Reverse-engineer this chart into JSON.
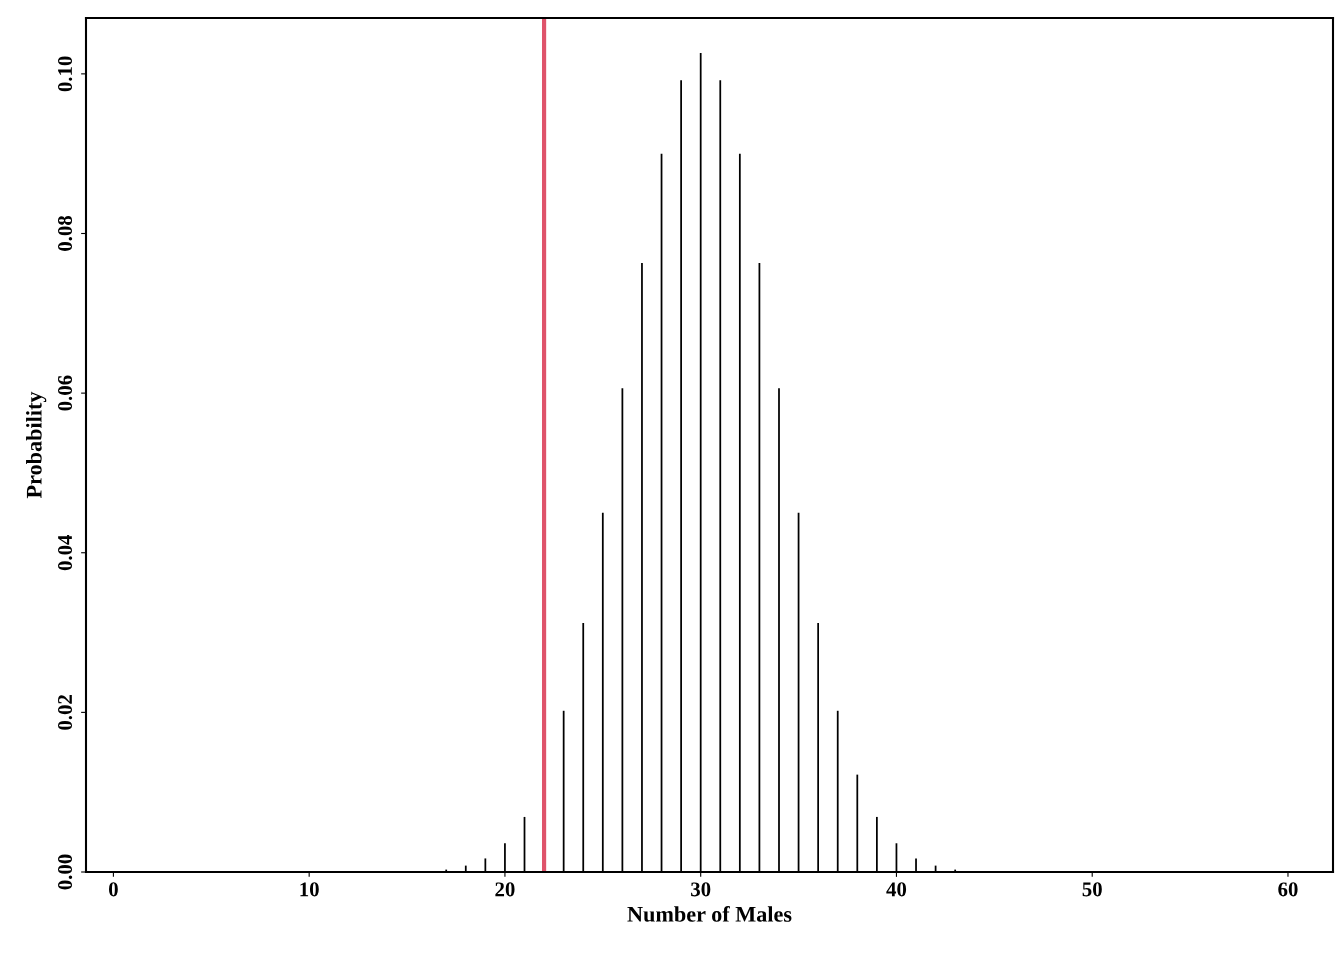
{
  "chart_data": {
    "type": "bar",
    "xlabel": "Number of Males",
    "ylabel": "Probability",
    "x": [
      17,
      18,
      19,
      20,
      21,
      22,
      23,
      24,
      25,
      26,
      27,
      28,
      29,
      30,
      31,
      32,
      33,
      34,
      35,
      36,
      37,
      38,
      39,
      40,
      41,
      42,
      43
    ],
    "values": [
      0.0003,
      0.0008,
      0.0017,
      0.0036,
      0.0069,
      null,
      0.0202,
      0.0312,
      0.045,
      0.0606,
      0.0763,
      0.09,
      0.0992,
      0.1026,
      0.0992,
      0.09,
      0.0763,
      0.0606,
      0.045,
      0.0312,
      0.0202,
      0.0122,
      0.0069,
      0.0036,
      0.0017,
      0.0008,
      0.0003
    ],
    "color": "#000000",
    "xlim": [
      -1.4,
      62.3
    ],
    "ylim": [
      0,
      0.107
    ],
    "xticks": [
      0,
      10,
      20,
      30,
      40,
      50,
      60
    ],
    "yticks": [
      {
        "value": 0,
        "label": "0.00"
      },
      {
        "value": 0.02,
        "label": "0.02"
      },
      {
        "value": 0.04,
        "label": "0.04"
      },
      {
        "value": 0.06,
        "label": "0.06"
      },
      {
        "value": 0.08,
        "label": "0.08"
      },
      {
        "value": 0.1,
        "label": "0.10"
      }
    ],
    "ref_lines": [
      {
        "axis": "x",
        "value": 22,
        "color": "#df536b"
      }
    ],
    "grid": false,
    "legend": false
  }
}
